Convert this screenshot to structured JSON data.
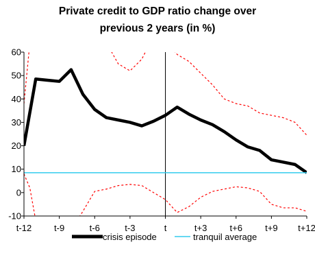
{
  "chart_data": {
    "type": "line",
    "title": [
      "Private credit to GDP ratio change over",
      "previous 2 years (in %)"
    ],
    "xlabel": "",
    "ylabel": "",
    "x": [
      -12,
      -11,
      -10,
      -9,
      -8,
      -7,
      -6,
      -5,
      -4,
      -3,
      -2,
      -1,
      0,
      1,
      2,
      3,
      4,
      5,
      6,
      7,
      8,
      9,
      10,
      11,
      12
    ],
    "xticks": [
      -12,
      -9,
      -6,
      -3,
      0,
      3,
      6,
      9,
      12
    ],
    "xtick_labels": [
      "t-12",
      "t-9",
      "t-6",
      "t-3",
      "t",
      "t+3",
      "t+6",
      "t+9",
      "t+12"
    ],
    "ylim": [
      -10,
      60
    ],
    "yticks": [
      -10,
      0,
      10,
      20,
      30,
      40,
      50,
      60
    ],
    "ytick_labels": [
      "-10",
      "0",
      "10",
      "20",
      "30",
      "40",
      "50",
      "60"
    ],
    "event_line_x": 0,
    "series": [
      {
        "name": "crisis episode",
        "color": "#000000",
        "style": "solid-thick",
        "values": [
          20,
          48.5,
          48,
          47.5,
          52.5,
          42,
          35.5,
          32,
          31,
          30,
          28.5,
          30.5,
          33,
          36.5,
          33.5,
          31,
          29,
          26,
          22.5,
          19.5,
          18,
          14,
          13,
          12,
          8.5
        ]
      },
      {
        "name": "tranquil average",
        "color": "#33ccee",
        "style": "solid-thin",
        "values": [
          8.5,
          8.5,
          8.5,
          8.5,
          8.5,
          8.5,
          8.5,
          8.5,
          8.5,
          8.5,
          8.5,
          8.5,
          8.5,
          8.5,
          8.5,
          8.5,
          8.5,
          8.5,
          8.5,
          8.5,
          8.5,
          8.5,
          8.5,
          8.5,
          8.5
        ]
      }
    ],
    "bands": [
      {
        "color": "#ff0000",
        "style": "dashed",
        "x": [
          -12,
          -11.5,
          -5,
          -4,
          -3,
          -2,
          -1.5
        ],
        "values": [
          38,
          64,
          64,
          55,
          52,
          57,
          62
        ]
      },
      {
        "color": "#ff0000",
        "style": "dashed",
        "x": [
          0.5,
          1,
          2,
          3,
          4,
          5,
          6,
          7,
          8,
          9,
          10,
          11,
          12
        ],
        "values": [
          62,
          59,
          56,
          51,
          46,
          40,
          38,
          37,
          34,
          33,
          32,
          30,
          24.5
        ]
      },
      {
        "color": "#ff0000",
        "style": "dashed",
        "x": [
          -12,
          -11.5,
          -11
        ],
        "values": [
          8,
          2,
          -12
        ]
      },
      {
        "color": "#ff0000",
        "style": "dashed",
        "x": [
          -7.5,
          -7,
          -6,
          -5,
          -4,
          -3,
          -2,
          -1,
          0,
          1,
          2,
          3,
          4,
          5,
          6,
          7,
          8,
          9,
          10,
          11,
          12
        ],
        "values": [
          -12,
          -8,
          0.5,
          1.5,
          3,
          3.5,
          3,
          0,
          -3,
          -8.5,
          -6,
          -2,
          0.5,
          1.5,
          2.5,
          2,
          0.5,
          -5,
          -6.5,
          -6.5,
          -8
        ]
      }
    ],
    "legend": {
      "position": "bottom",
      "entries": [
        "crisis episode",
        "tranquil average"
      ]
    }
  }
}
